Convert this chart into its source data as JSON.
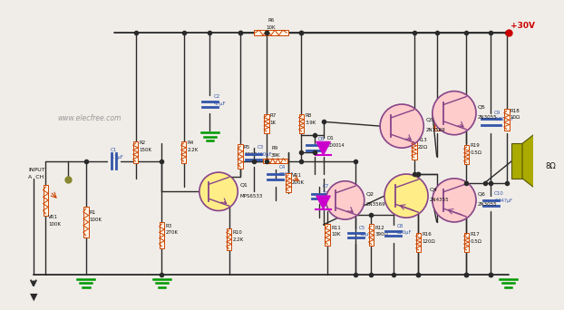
{
  "bg_color": "#f0ede8",
  "wire_color": "#2a2a2a",
  "resistor_color": "#cc4400",
  "capacitor_color": "#3355aa",
  "transistor_fill_npn": "#ffcccc",
  "transistor_fill_q4": "#ffee88",
  "transistor_fill_q1": "#ffee88",
  "transistor_outline": "#884488",
  "diode_fill": "#cc00cc",
  "ground_color": "#009900",
  "power_color": "#cc0000",
  "speaker_fill": "#aaaa00",
  "label_color": "#111111",
  "watermark": "www.elecfree.com",
  "watermark_color": "#999999",
  "power_label": "+30V",
  "speaker_label": "8Ω"
}
